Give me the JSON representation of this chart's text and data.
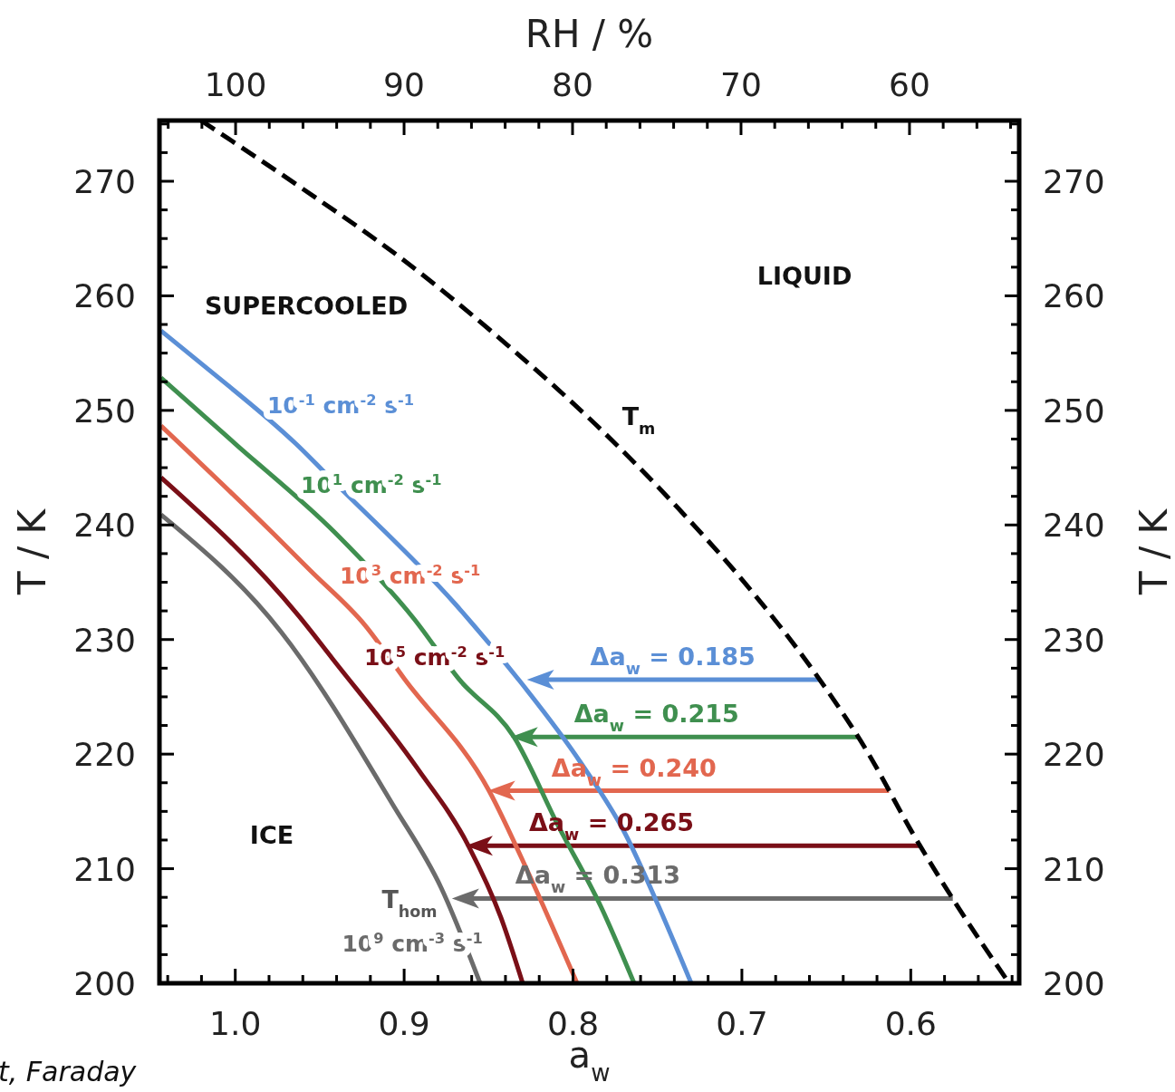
{
  "chart_data": {
    "type": "line",
    "xlabel": "a$_{w}$",
    "x2label": "RH / %",
    "ylabel": "T / K",
    "y2label": "T / K",
    "xlim": [
      1.0449,
      0.5358
    ],
    "x2lim": [
      104.52,
      53.49
    ],
    "ylim": [
      200,
      275.3
    ],
    "y2lim": [
      200,
      275.3
    ],
    "xticks": [
      {
        "value": 1.04,
        "label": null
      },
      {
        "value": 1.02,
        "label": null
      },
      {
        "value": 1,
        "label": "1.0"
      },
      {
        "value": 0.98,
        "label": null
      },
      {
        "value": 0.96,
        "label": null
      },
      {
        "value": 0.94,
        "label": null
      },
      {
        "value": 0.92,
        "label": null
      },
      0.9,
      {
        "value": 0.88,
        "label": null
      },
      {
        "value": 0.86,
        "label": null
      },
      {
        "value": 0.84,
        "label": null
      },
      {
        "value": 0.82,
        "label": null
      },
      0.8,
      {
        "value": 0.78,
        "label": null
      },
      {
        "value": 0.76,
        "label": null
      },
      {
        "value": 0.74,
        "label": null
      },
      {
        "value": 0.72,
        "label": null
      },
      0.7,
      {
        "value": 0.68,
        "label": null
      },
      {
        "value": 0.66,
        "label": null
      },
      {
        "value": 0.64,
        "label": null
      },
      {
        "value": 0.62,
        "label": null
      },
      0.6,
      {
        "value": 0.58,
        "label": null
      },
      {
        "value": 0.56,
        "label": null
      },
      {
        "value": 0.54,
        "label": null
      }
    ],
    "x2ticks": [
      {
        "value": 104,
        "label": null
      },
      {
        "value": 102,
        "label": null
      },
      100,
      {
        "value": 98,
        "label": null
      },
      {
        "value": 96,
        "label": null
      },
      {
        "value": 94,
        "label": null
      },
      {
        "value": 92,
        "label": null
      },
      90,
      {
        "value": 88,
        "label": null
      },
      {
        "value": 86,
        "label": null
      },
      {
        "value": 84,
        "label": null
      },
      {
        "value": 82,
        "label": null
      },
      80,
      {
        "value": 78,
        "label": null
      },
      {
        "value": 76,
        "label": null
      },
      {
        "value": 74,
        "label": null
      },
      {
        "value": 72,
        "label": null
      },
      70,
      {
        "value": 68,
        "label": null
      },
      {
        "value": 66,
        "label": null
      },
      {
        "value": 64,
        "label": null
      },
      {
        "value": 62,
        "label": null
      },
      60,
      {
        "value": 58,
        "label": null
      },
      {
        "value": 56,
        "label": null
      },
      {
        "value": 54,
        "label": null
      }
    ],
    "yticks": [
      200,
      {
        "value": 202.5,
        "label": null
      },
      {
        "value": 205,
        "label": null
      },
      {
        "value": 207.5,
        "label": null
      },
      210,
      {
        "value": 212.5,
        "label": null
      },
      {
        "value": 215,
        "label": null
      },
      {
        "value": 217.5,
        "label": null
      },
      220,
      {
        "value": 222.5,
        "label": null
      },
      {
        "value": 225,
        "label": null
      },
      {
        "value": 227.5,
        "label": null
      },
      230,
      {
        "value": 232.5,
        "label": null
      },
      {
        "value": 235,
        "label": null
      },
      {
        "value": 237.5,
        "label": null
      },
      240,
      {
        "value": 242.5,
        "label": null
      },
      {
        "value": 245,
        "label": null
      },
      {
        "value": 247.5,
        "label": null
      },
      250,
      {
        "value": 252.5,
        "label": null
      },
      {
        "value": 255,
        "label": null
      },
      {
        "value": 257.5,
        "label": null
      },
      260,
      {
        "value": 262.5,
        "label": null
      },
      {
        "value": 265,
        "label": null
      },
      {
        "value": 267.5,
        "label": null
      },
      270,
      {
        "value": 272.5,
        "label": null
      },
      {
        "value": 275,
        "label": null
      }
    ],
    "y2ticks": [
      200,
      {
        "value": 202.5,
        "label": null
      },
      {
        "value": 205,
        "label": null
      },
      {
        "value": 207.5,
        "label": null
      },
      210,
      {
        "value": 212.5,
        "label": null
      },
      {
        "value": 215,
        "label": null
      },
      {
        "value": 217.5,
        "label": null
      },
      220,
      {
        "value": 222.5,
        "label": null
      },
      {
        "value": 225,
        "label": null
      },
      {
        "value": 227.5,
        "label": null
      },
      230,
      {
        "value": 232.5,
        "label": null
      },
      {
        "value": 235,
        "label": null
      },
      {
        "value": 237.5,
        "label": null
      },
      240,
      {
        "value": 242.5,
        "label": null
      },
      {
        "value": 245,
        "label": null
      },
      {
        "value": 247.5,
        "label": null
      },
      250,
      {
        "value": 252.5,
        "label": null
      },
      {
        "value": 255,
        "label": null
      },
      {
        "value": 257.5,
        "label": null
      },
      260,
      {
        "value": 262.5,
        "label": null
      },
      {
        "value": 265,
        "label": null
      },
      {
        "value": 267.5,
        "label": null
      },
      270,
      {
        "value": 272.5,
        "label": null
      },
      {
        "value": 275,
        "label": null
      }
    ],
    "grid": false,
    "marker": "none",
    "series": [
      {
        "color": "#000000",
        "line_style": "dashed",
        "x": [
          1.0203,
          0.9626,
          0.8984,
          0.8396,
          0.7861,
          0.738,
          0.6952,
          0.6578,
          0.6257,
          0.5989,
          0.5722,
          0.5417
        ],
        "values": [
          275.3,
          269.6,
          262.9,
          255.8,
          248.7,
          241.5,
          234.4,
          227.3,
          220.2,
          213.1,
          206.7,
          200
        ]
      },
      {
        "name": "10$^{-1}$ cm$^{-2}$ s$^{-1}$",
        "color": "#5b8fd6",
        "x": [
          1.044,
          1.0197,
          0.9639,
          0.9408,
          0.8695,
          0.8335,
          0.796,
          0.7691,
          0.7493,
          0.73
        ],
        "values": [
          256.95,
          254.03,
          247.06,
          243.66,
          233.06,
          226.74,
          219.38,
          213.05,
          206.72,
          200
        ]
      },
      {
        "name": "10$^{1}$ cm$^{-2}$ s$^{-1}$",
        "color": "#3f8f4f",
        "x": [
          1.044,
          0.9998,
          0.9408,
          0.8941,
          0.8673,
          0.8351,
          0.8083,
          0.7836,
          0.7638
        ],
        "values": [
          252.84,
          247.06,
          239.31,
          231.8,
          226.5,
          221.52,
          213.61,
          206.72,
          200
        ]
      },
      {
        "name": "10$^{3}$ cm$^{-2}$ s$^{-1}$",
        "color": "#e2674f",
        "x": [
          1.044,
          0.9768,
          0.9553,
          0.9231,
          0.8995,
          0.8496,
          0.8265,
          0.7976
        ],
        "values": [
          248.65,
          239.15,
          235.99,
          231.24,
          226.5,
          216.77,
          209.65,
          200
        ]
      },
      {
        "name": "10$^{5}$ cm$^{-2}$ s$^{-1}$",
        "color": "#7a0f17",
        "x": [
          1.044,
          0.9623,
          0.9424,
          0.8925,
          0.862,
          0.8426,
          0.8298
        ],
        "values": [
          244.14,
          232.04,
          228.32,
          218.83,
          212.02,
          205.7,
          200
        ]
      },
      {
        "name": "10$^{9}$ cm$^{-3}$ s$^{-1}$",
        "color": "#6b6b6b",
        "x": [
          0.855,
          0.878,
          0.907,
          0.973,
          1.044
        ],
        "values": [
          200,
          208.31,
          215.66,
          230.69,
          240.9
        ]
      }
    ],
    "annotations": [
      "SUPERCOOLED",
      "LIQUID",
      "ICE",
      "T$_{m}$",
      "T$_{hom}$",
      {
        "text": "Δa$_{w}$ = 0.185",
        "x": 0.8273,
        "y": 226.5
      },
      {
        "text": "Δa$_{w}$ = 0.215",
        "x": 0.8369,
        "y": 221.5
      },
      {
        "text": "Δa$_{w}$ = 0.240",
        "x": 0.8503,
        "y": 216.8
      },
      {
        "text": "Δa$_{w}$ = 0.265",
        "x": 0.8636,
        "y": 212
      },
      {
        "text": "Δa$_{w}$ = 0.313",
        "x": 0.8717,
        "y": 207.4
      },
      "t, Faraday"
    ]
  }
}
